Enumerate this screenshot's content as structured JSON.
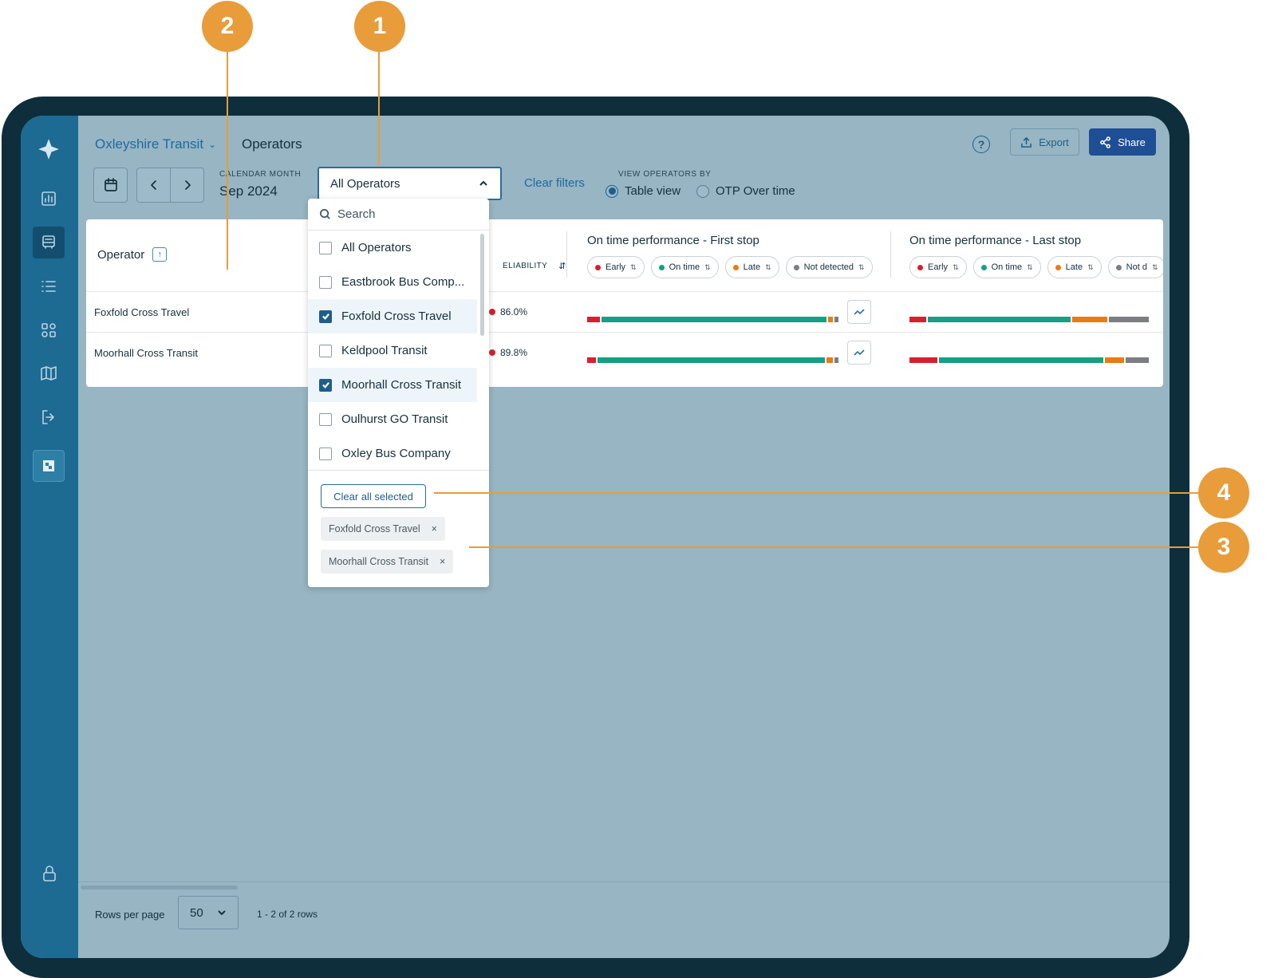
{
  "header": {
    "org_name": "Oxleyshire Transit",
    "page_title": "Operators",
    "help_symbol": "?",
    "export_label": "Export",
    "share_label": "Share"
  },
  "toolbar": {
    "calendar_label": "CALENDAR MONTH",
    "calendar_value": "Sep 2024",
    "operator_select_value": "All Operators",
    "clear_filters_label": "Clear filters",
    "view_by_label": "VIEW OPERATORS BY",
    "view_options": [
      {
        "label": "Table view",
        "selected": true
      },
      {
        "label": "OTP Over time",
        "selected": false
      }
    ]
  },
  "dropdown": {
    "search_placeholder": "Search",
    "options": [
      {
        "label": "All Operators",
        "checked": false
      },
      {
        "label": "Eastbrook Bus Comp...",
        "checked": false
      },
      {
        "label": "Foxfold Cross Travel",
        "checked": true
      },
      {
        "label": "Keldpool Transit",
        "checked": false
      },
      {
        "label": "Moorhall Cross Transit",
        "checked": true
      },
      {
        "label": "Oulhurst GO Transit",
        "checked": false
      },
      {
        "label": "Oxley Bus Company",
        "checked": false
      }
    ],
    "clear_all_label": "Clear all selected",
    "chips": [
      "Foxfold Cross Travel",
      "Moorhall Cross Transit"
    ],
    "chip_remove_symbol": "×"
  },
  "table": {
    "operator_header": "Operator",
    "sort_symbol": "↑",
    "reliability_header": "ELIABILITY",
    "otp_first_stop_header": "On time performance - First stop",
    "otp_last_stop_header": "On time performance - Last stop",
    "filter_pills": [
      {
        "label": "Early",
        "color": "#d81f2e"
      },
      {
        "label": "On time",
        "color": "#13a085"
      },
      {
        "label": "Late",
        "color": "#ea7a12"
      },
      {
        "label": "Not detected",
        "color": "#7b7f82"
      }
    ],
    "last_stop_pills": [
      {
        "label": "Early",
        "color": "#d81f2e"
      },
      {
        "label": "On time",
        "color": "#13a085"
      },
      {
        "label": "Late",
        "color": "#ea7a12"
      },
      {
        "label": "Not d",
        "color": "#7b7f82"
      }
    ],
    "rows": [
      {
        "operator": "Foxfold Cross Travel",
        "reliability": "86.0%",
        "first_stop": {
          "early": 5,
          "on_time": 87,
          "late": 2,
          "not_detected": 1.5
        },
        "last_stop": {
          "early": 7,
          "on_time": 61,
          "late": 15,
          "not_detected": 17
        }
      },
      {
        "operator": "Moorhall Cross Transit",
        "reliability": "89.8%",
        "first_stop": {
          "early": 3.5,
          "on_time": 88,
          "late": 2.5,
          "not_detected": 1.5
        },
        "last_stop": {
          "early": 12,
          "on_time": 70,
          "late": 8,
          "not_detected": 10
        }
      }
    ]
  },
  "footer": {
    "rows_per_page_label": "Rows per page",
    "rows_per_page_value": "50",
    "rows_count": "1 - 2 of 2 rows"
  },
  "callouts": [
    "1",
    "2",
    "3",
    "4"
  ],
  "colors": {
    "early": "#d81f2e",
    "on_time": "#13a085",
    "late": "#ea7a12",
    "not_detected": "#7b7f82",
    "callout": "#e89c3a",
    "sidebar": "#1d6a92",
    "primary": "#1e4f95"
  },
  "icons": [
    "logo-icon",
    "chart-icon",
    "bus-icon",
    "list-icon",
    "apps-icon",
    "map-icon",
    "logout-icon",
    "brand-icon",
    "lock-icon",
    "calendar-icon",
    "chevron-left-icon",
    "chevron-right-icon",
    "help-icon",
    "export-icon",
    "share-icon",
    "search-icon",
    "trend-icon"
  ]
}
